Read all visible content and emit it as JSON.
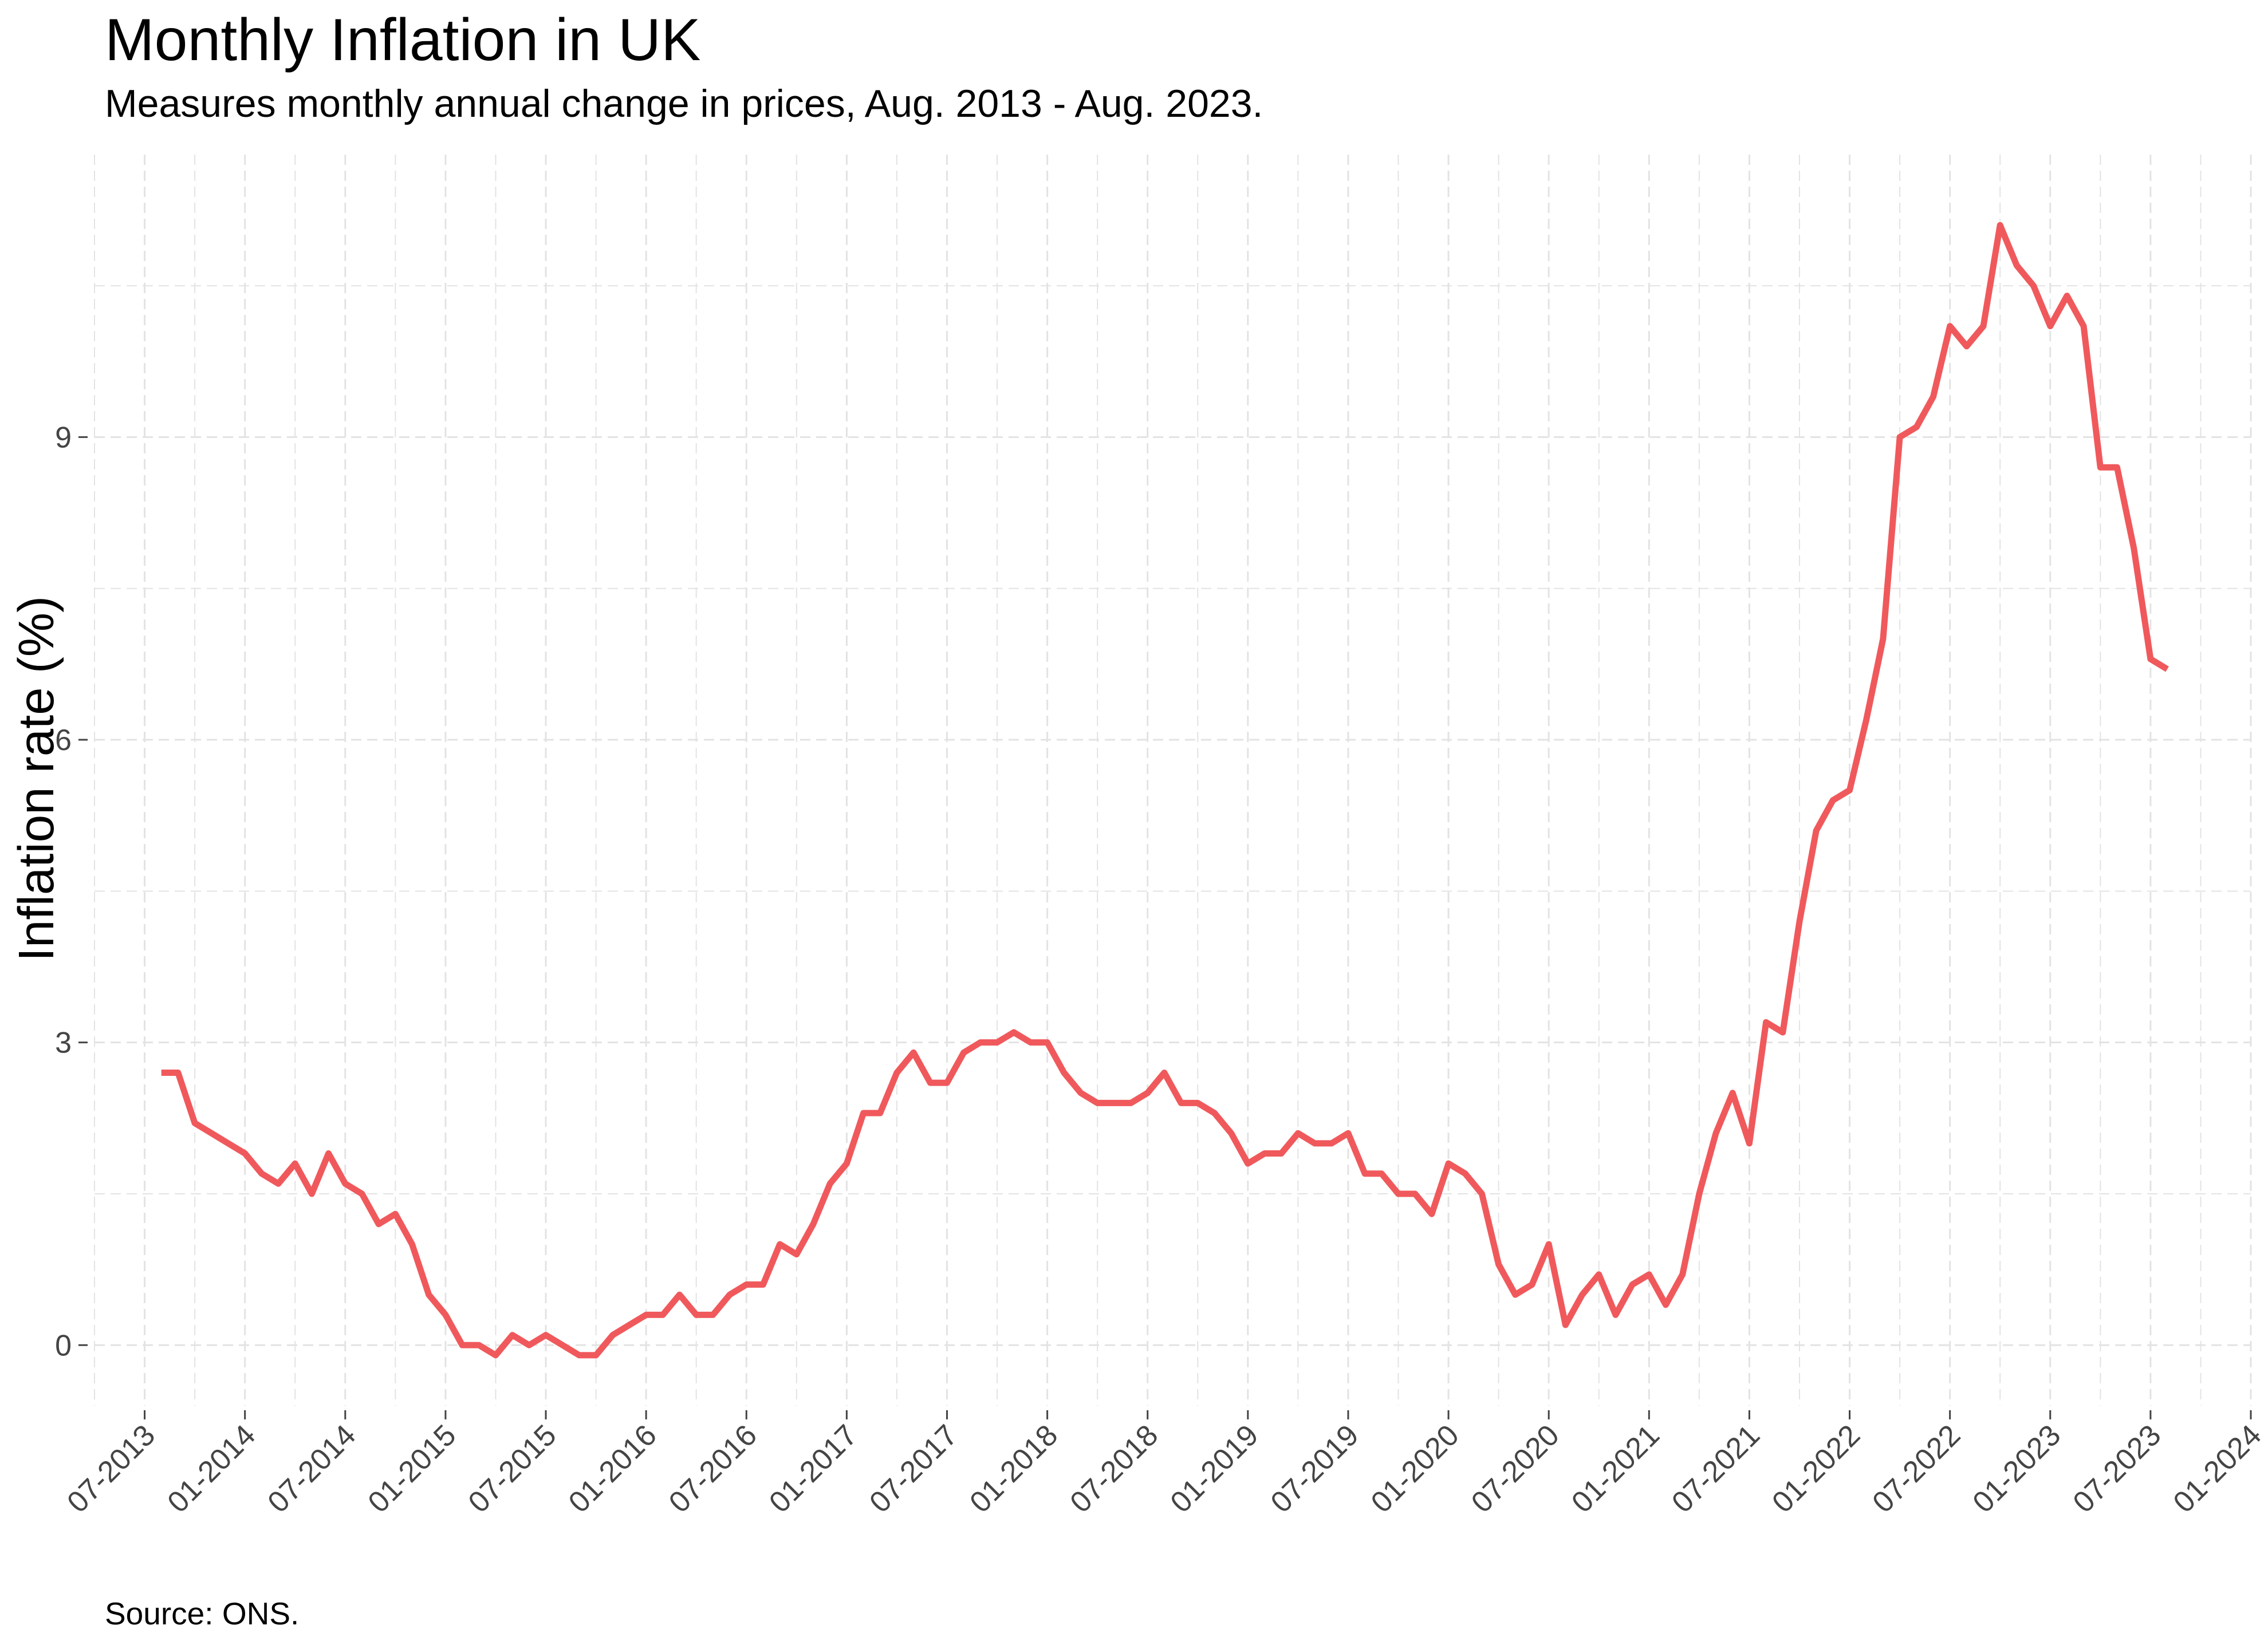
{
  "chart_data": {
    "type": "line",
    "title": "Monthly Inflation in UK",
    "subtitle": "Measures monthly annual change in prices, Aug. 2013 - Aug. 2023.",
    "caption": "Source: ONS.",
    "xlabel": "",
    "ylabel": "Inflation rate (%)",
    "x_tick_labels": [
      "07-2013",
      "01-2014",
      "07-2014",
      "01-2015",
      "07-2015",
      "01-2016",
      "07-2016",
      "01-2017",
      "07-2017",
      "01-2018",
      "07-2018",
      "01-2019",
      "07-2019",
      "01-2020",
      "07-2020",
      "01-2021",
      "07-2021",
      "01-2022",
      "07-2022",
      "01-2023",
      "07-2023",
      "01-2024"
    ],
    "y_ticks": [
      0,
      3,
      6,
      9
    ],
    "ylim": [
      -0.6,
      11.8
    ],
    "xlim": [
      "2013-04",
      "2024-01"
    ],
    "grid": true,
    "line_color": "#F0595C",
    "series": [
      {
        "x": [
          "2013-08",
          "2013-09",
          "2013-10",
          "2013-11",
          "2013-12",
          "2014-01",
          "2014-02",
          "2014-03",
          "2014-04",
          "2014-05",
          "2014-06",
          "2014-07",
          "2014-08",
          "2014-09",
          "2014-10",
          "2014-11",
          "2014-12",
          "2015-01",
          "2015-02",
          "2015-03",
          "2015-04",
          "2015-05",
          "2015-06",
          "2015-07",
          "2015-08",
          "2015-09",
          "2015-10",
          "2015-11",
          "2015-12",
          "2016-01",
          "2016-02",
          "2016-03",
          "2016-04",
          "2016-05",
          "2016-06",
          "2016-07",
          "2016-08",
          "2016-09",
          "2016-10",
          "2016-11",
          "2016-12",
          "2017-01",
          "2017-02",
          "2017-03",
          "2017-04",
          "2017-05",
          "2017-06",
          "2017-07",
          "2017-08",
          "2017-09",
          "2017-10",
          "2017-11",
          "2017-12",
          "2018-01",
          "2018-02",
          "2018-03",
          "2018-04",
          "2018-05",
          "2018-06",
          "2018-07",
          "2018-08",
          "2018-09",
          "2018-10",
          "2018-11",
          "2018-12",
          "2019-01",
          "2019-02",
          "2019-03",
          "2019-04",
          "2019-05",
          "2019-06",
          "2019-07",
          "2019-08",
          "2019-09",
          "2019-10",
          "2019-11",
          "2019-12",
          "2020-01",
          "2020-02",
          "2020-03",
          "2020-04",
          "2020-05",
          "2020-06",
          "2020-07",
          "2020-08",
          "2020-09",
          "2020-10",
          "2020-11",
          "2020-12",
          "2021-01",
          "2021-02",
          "2021-03",
          "2021-04",
          "2021-05",
          "2021-06",
          "2021-07",
          "2021-08",
          "2021-09",
          "2021-10",
          "2021-11",
          "2021-12",
          "2022-01",
          "2022-02",
          "2022-03",
          "2022-04",
          "2022-05",
          "2022-06",
          "2022-07",
          "2022-08",
          "2022-09",
          "2022-10",
          "2022-11",
          "2022-12",
          "2023-01",
          "2023-02",
          "2023-03",
          "2023-04",
          "2023-05",
          "2023-06",
          "2023-07",
          "2023-08"
        ],
        "values": [
          2.7,
          2.7,
          2.2,
          2.1,
          2.0,
          1.9,
          1.7,
          1.6,
          1.8,
          1.5,
          1.9,
          1.6,
          1.5,
          1.2,
          1.3,
          1.0,
          0.5,
          0.3,
          0.0,
          0.0,
          -0.1,
          0.1,
          0.0,
          0.1,
          0.0,
          -0.1,
          -0.1,
          0.1,
          0.2,
          0.3,
          0.3,
          0.5,
          0.3,
          0.3,
          0.5,
          0.6,
          0.6,
          1.0,
          0.9,
          1.2,
          1.6,
          1.8,
          2.3,
          2.3,
          2.7,
          2.9,
          2.6,
          2.6,
          2.9,
          3.0,
          3.0,
          3.1,
          3.0,
          3.0,
          2.7,
          2.5,
          2.4,
          2.4,
          2.4,
          2.5,
          2.7,
          2.4,
          2.4,
          2.3,
          2.1,
          1.8,
          1.9,
          1.9,
          2.1,
          2.0,
          2.0,
          2.1,
          1.7,
          1.7,
          1.5,
          1.5,
          1.3,
          1.8,
          1.7,
          1.5,
          0.8,
          0.5,
          0.6,
          1.0,
          0.2,
          0.5,
          0.7,
          0.3,
          0.6,
          0.7,
          0.4,
          0.7,
          1.5,
          2.1,
          2.5,
          2.0,
          3.2,
          3.1,
          4.2,
          5.1,
          5.4,
          5.5,
          6.2,
          7.0,
          9.0,
          9.1,
          9.4,
          10.1,
          9.9,
          10.1,
          11.1,
          10.7,
          10.5,
          10.1,
          10.4,
          10.1,
          8.7,
          8.7,
          7.9,
          6.8,
          6.7
        ]
      }
    ]
  }
}
